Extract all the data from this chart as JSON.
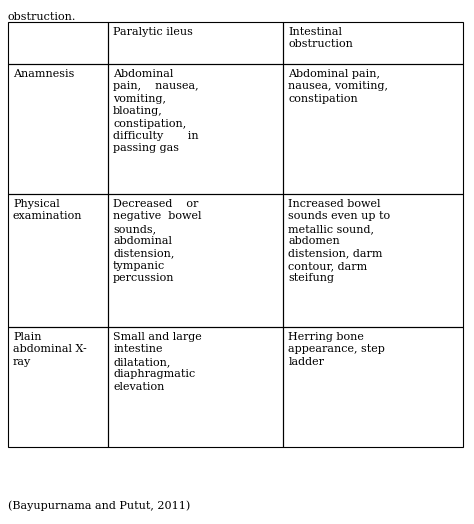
{
  "caption_top": "obstruction.",
  "caption_bottom": "(Bayupurnama and Putut, 2011)",
  "headers": [
    "",
    "Paralytic ileus",
    "Intestinal\nobstruction"
  ],
  "rows": [
    {
      "col0": "Anamnesis",
      "col1": "Abdominal\npain,    nausea,\nvomiting,\nbloating,\nconstipation,\ndifficulty       in\npassing gas",
      "col2": "Abdominal pain,\nnausea, vomiting,\nconstipation"
    },
    {
      "col0": "Physical\nexamination",
      "col1": "Decreased    or\nnegative  bowel\nsounds,\nabdominal\ndistension,\ntympanic\npercussion",
      "col2": "Increased bowel\nsounds even up to\nmetallic sound,\nabdomen\ndistension, darm\ncontour, darm\nsteifung"
    },
    {
      "col0": "Plain\nabdominal X-\nray",
      "col1": "Small and large\nintestine\ndilatation,\ndiaphragmatic\nelevation",
      "col2": "Herring bone\nappearance, step\nladder"
    }
  ],
  "font_size": 8.0,
  "bg_color": "#ffffff",
  "line_color": "#000000",
  "text_color": "#000000",
  "font_family": "DejaVu Serif"
}
